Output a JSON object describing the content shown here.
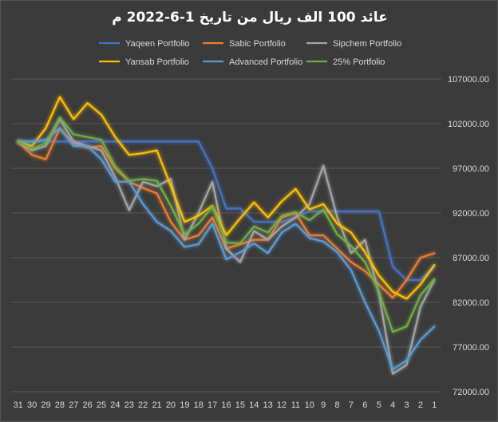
{
  "chart_data": {
    "type": "line",
    "title": "عائد 100 الف ريال من تاريخ 1-6-2022 م",
    "xlabel": "",
    "ylabel": "",
    "ylim": [
      72000,
      107000
    ],
    "ytick_values": [
      72000,
      77000,
      82000,
      87000,
      92000,
      97000,
      102000,
      107000
    ],
    "ytick_labels": [
      "72000.00",
      "77000.00",
      "82000.00",
      "87000.00",
      "92000.00",
      "97000.00",
      "102000.00",
      "107000.00"
    ],
    "categories": [
      "31",
      "30",
      "29",
      "28",
      "27",
      "26",
      "25",
      "24",
      "23",
      "22",
      "21",
      "20",
      "19",
      "18",
      "17",
      "16",
      "15",
      "14",
      "13",
      "12",
      "11",
      "10",
      "9",
      "8",
      "7",
      "6",
      "5",
      "4",
      "3",
      "2",
      "1"
    ],
    "grid": true,
    "legend_position": "top",
    "series": [
      {
        "name": "Yaqeen Portfolio",
        "color": "#4472c4",
        "values": [
          100000,
          100000,
          100000,
          100000,
          100000,
          100000,
          100000,
          100000,
          100000,
          100000,
          100000,
          100000,
          100000,
          100000,
          97000,
          92500,
          92500,
          91000,
          91000,
          91000,
          91500,
          92200,
          92200,
          92200,
          92200,
          92200,
          92200,
          86000,
          84500,
          84500,
          86000
        ]
      },
      {
        "name": "Sabic Portfolio",
        "color": "#ed7d31",
        "values": [
          100000,
          98500,
          98000,
          101500,
          99800,
          99300,
          99500,
          97000,
          95500,
          94800,
          94200,
          91000,
          89000,
          89500,
          91500,
          88000,
          88500,
          89000,
          89000,
          91500,
          92000,
          89500,
          89500,
          88000,
          86500,
          85500,
          84000,
          82500,
          84500,
          87000,
          87500
        ]
      },
      {
        "name": "Sipchem Portfolio",
        "color": "#a5a5a5",
        "values": [
          100000,
          99000,
          99500,
          102500,
          100000,
          99500,
          99000,
          96000,
          92300,
          95500,
          95000,
          95800,
          89000,
          92000,
          95500,
          88000,
          86500,
          90000,
          89000,
          90500,
          91500,
          93000,
          97300,
          91500,
          87500,
          89000,
          83000,
          74000,
          75000,
          81500,
          84500
        ]
      },
      {
        "name": "Yansab Portfolio",
        "color": "#ffc000",
        "values": [
          100000,
          99500,
          101500,
          105000,
          102500,
          104300,
          103000,
          100500,
          98500,
          98700,
          99000,
          95000,
          91000,
          91700,
          92800,
          89500,
          91400,
          93200,
          91500,
          93300,
          94700,
          92400,
          93000,
          90800,
          89800,
          87600,
          85000,
          83200,
          82400,
          84000,
          86200
        ]
      },
      {
        "name": "Advanced Portfolio",
        "color": "#5b9bd5",
        "values": [
          100000,
          100000,
          100200,
          101500,
          99500,
          99500,
          98000,
          95500,
          95500,
          93000,
          91000,
          90000,
          88200,
          88500,
          90800,
          86800,
          87600,
          88600,
          87500,
          89800,
          90800,
          89200,
          88800,
          87600,
          85600,
          82000,
          78800,
          74500,
          75500,
          77800,
          79300
        ]
      },
      {
        "name": "25% Portfolio",
        "color": "#70ad47",
        "values": [
          100000,
          99200,
          99800,
          102700,
          100800,
          100500,
          100200,
          97200,
          95600,
          95800,
          95600,
          92800,
          89600,
          90800,
          92700,
          88700,
          88600,
          90500,
          89800,
          91700,
          92100,
          91200,
          92400,
          89600,
          88300,
          86500,
          83200,
          78700,
          79300,
          82800,
          84600
        ]
      }
    ]
  }
}
